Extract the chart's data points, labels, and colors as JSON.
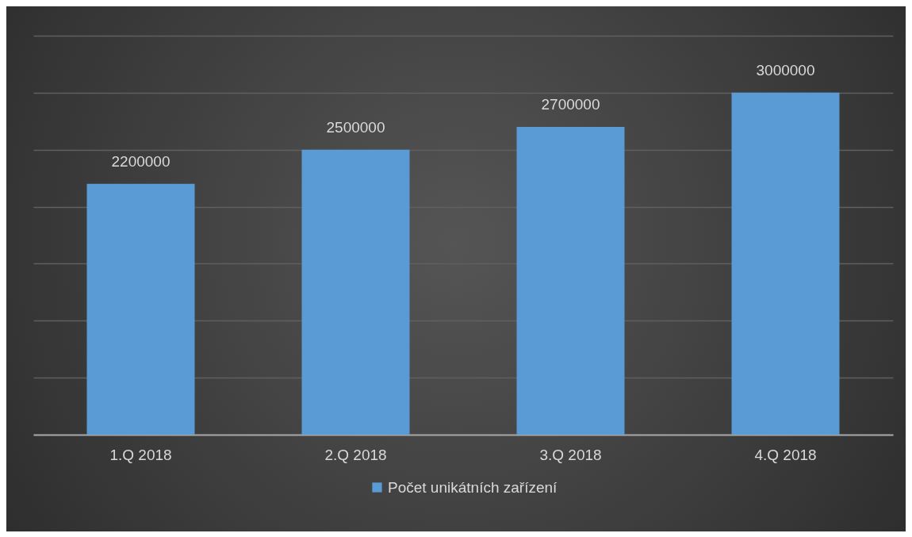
{
  "chart_data": {
    "type": "bar",
    "categories": [
      "1.Q 2018",
      "2.Q 2018",
      "3.Q 2018",
      "4.Q 2018"
    ],
    "series": [
      {
        "name": "Počet unikátních zařízení",
        "color": "#5b9bd5",
        "values": [
          2200000,
          2500000,
          2700000,
          3000000
        ]
      }
    ],
    "ylim": [
      0,
      3500000
    ],
    "yticks": [
      {
        "value": 0,
        "label": null
      },
      {
        "value": 500000,
        "label": null
      },
      {
        "value": 1000000,
        "label": null
      },
      {
        "value": 1500000,
        "label": null
      },
      {
        "value": 2000000,
        "label": null
      },
      {
        "value": 2500000,
        "label": null
      },
      {
        "value": 3000000,
        "label": null
      },
      {
        "value": 3500000,
        "label": null
      }
    ],
    "tick_labels": "x",
    "grid": "y",
    "legend": "bottom",
    "data_labels": true
  }
}
